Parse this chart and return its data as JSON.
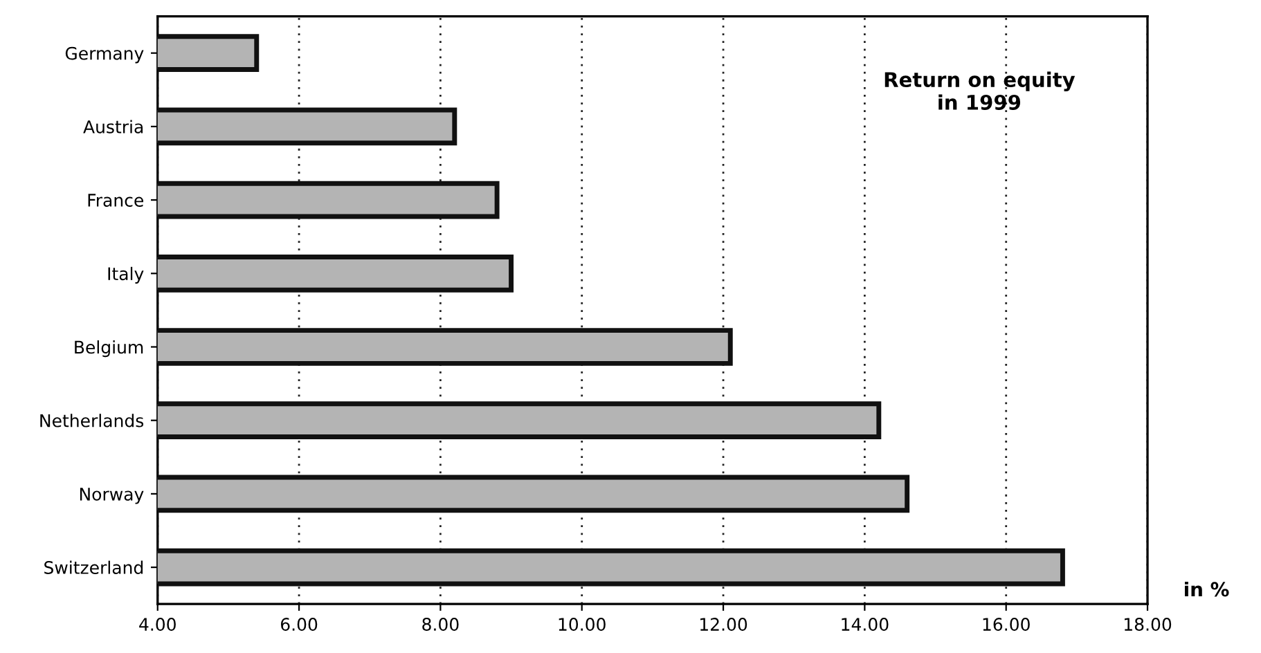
{
  "chart_data": {
    "type": "bar",
    "orientation": "horizontal",
    "title": "Return on equity\nin 1999",
    "xlabel": "in %",
    "categories": [
      "Germany",
      "Austria",
      "France",
      "Italy",
      "Belgium",
      "Netherlands",
      "Norway",
      "Switzerland"
    ],
    "values": [
      5.4,
      8.2,
      8.8,
      9.0,
      12.1,
      14.2,
      14.6,
      16.8
    ],
    "color": "#b4b4b4",
    "xlim": [
      4,
      18
    ],
    "xticks": [
      {
        "value": 4,
        "label": "4.00"
      },
      {
        "value": 6,
        "label": "6.00"
      },
      {
        "value": 8,
        "label": "8.00"
      },
      {
        "value": 10,
        "label": "10.00"
      },
      {
        "value": 12,
        "label": "12.00"
      },
      {
        "value": 14,
        "label": "14.00"
      },
      {
        "value": 16,
        "label": "16.00"
      },
      {
        "value": 18,
        "label": "18.00"
      }
    ],
    "grid": "x"
  }
}
